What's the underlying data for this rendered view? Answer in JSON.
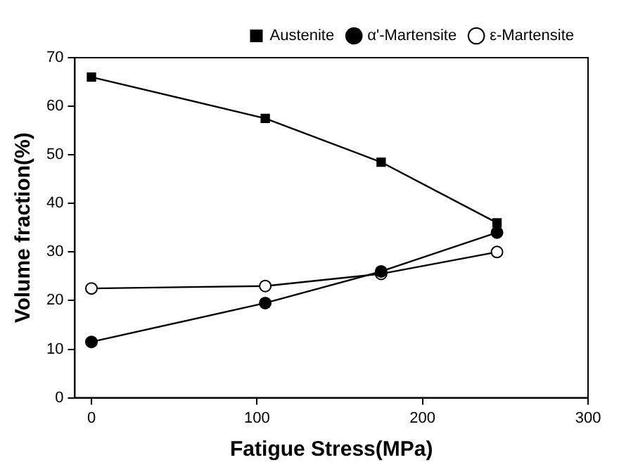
{
  "chart_data": {
    "type": "line",
    "xlabel": "Fatigue Stress(MPa)",
    "ylabel": "Volume fraction(%)",
    "x": [
      0,
      105,
      175,
      245
    ],
    "series": [
      {
        "name": "Austenite",
        "color": "#000000",
        "marker": "square",
        "values": [
          66,
          57.5,
          48.5,
          36
        ]
      },
      {
        "name": "α'-Martensite",
        "color": "#000000",
        "marker": "circle",
        "values": [
          11.5,
          19.5,
          26,
          34
        ]
      },
      {
        "name": "ε-Martensite",
        "color": "#000000",
        "marker": "circle",
        "values": [
          22.5,
          23,
          25.5,
          30
        ]
      }
    ],
    "xlim": [
      -10,
      300
    ],
    "xticks": [
      0,
      100,
      200,
      300
    ],
    "ylim": [
      0,
      70
    ],
    "yticks": [
      0,
      10,
      20,
      30,
      40,
      50,
      60,
      70
    ],
    "grid": false,
    "legend": "top right",
    "line_style": "solid"
  }
}
